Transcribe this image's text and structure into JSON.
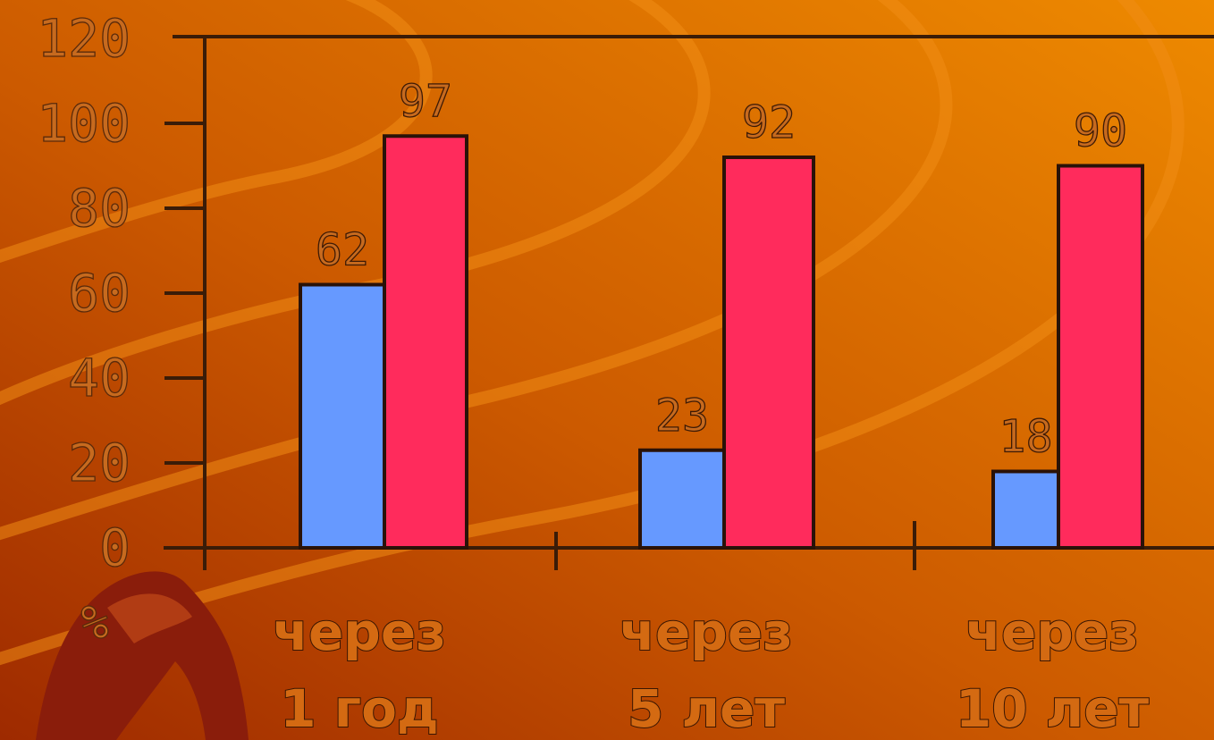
{
  "chart_data": {
    "type": "bar",
    "ylabel": "%",
    "ylim": [
      0,
      120
    ],
    "yticks": [
      "0",
      "20",
      "40",
      "60",
      "80",
      "100",
      "120"
    ],
    "categories": [
      [
        "через",
        "1 год"
      ],
      [
        "через",
        "5 лет"
      ],
      [
        "через",
        "10 лет"
      ]
    ],
    "series": [
      {
        "values": [
          62,
          23,
          18
        ],
        "color": "#6699ff"
      },
      {
        "values": [
          97,
          92,
          90
        ],
        "color": "#ff2b5c"
      }
    ],
    "data_labels": [
      [
        "62",
        "23",
        "18"
      ],
      [
        "97",
        "92",
        "90"
      ]
    ],
    "grid": false,
    "legend": "none"
  }
}
